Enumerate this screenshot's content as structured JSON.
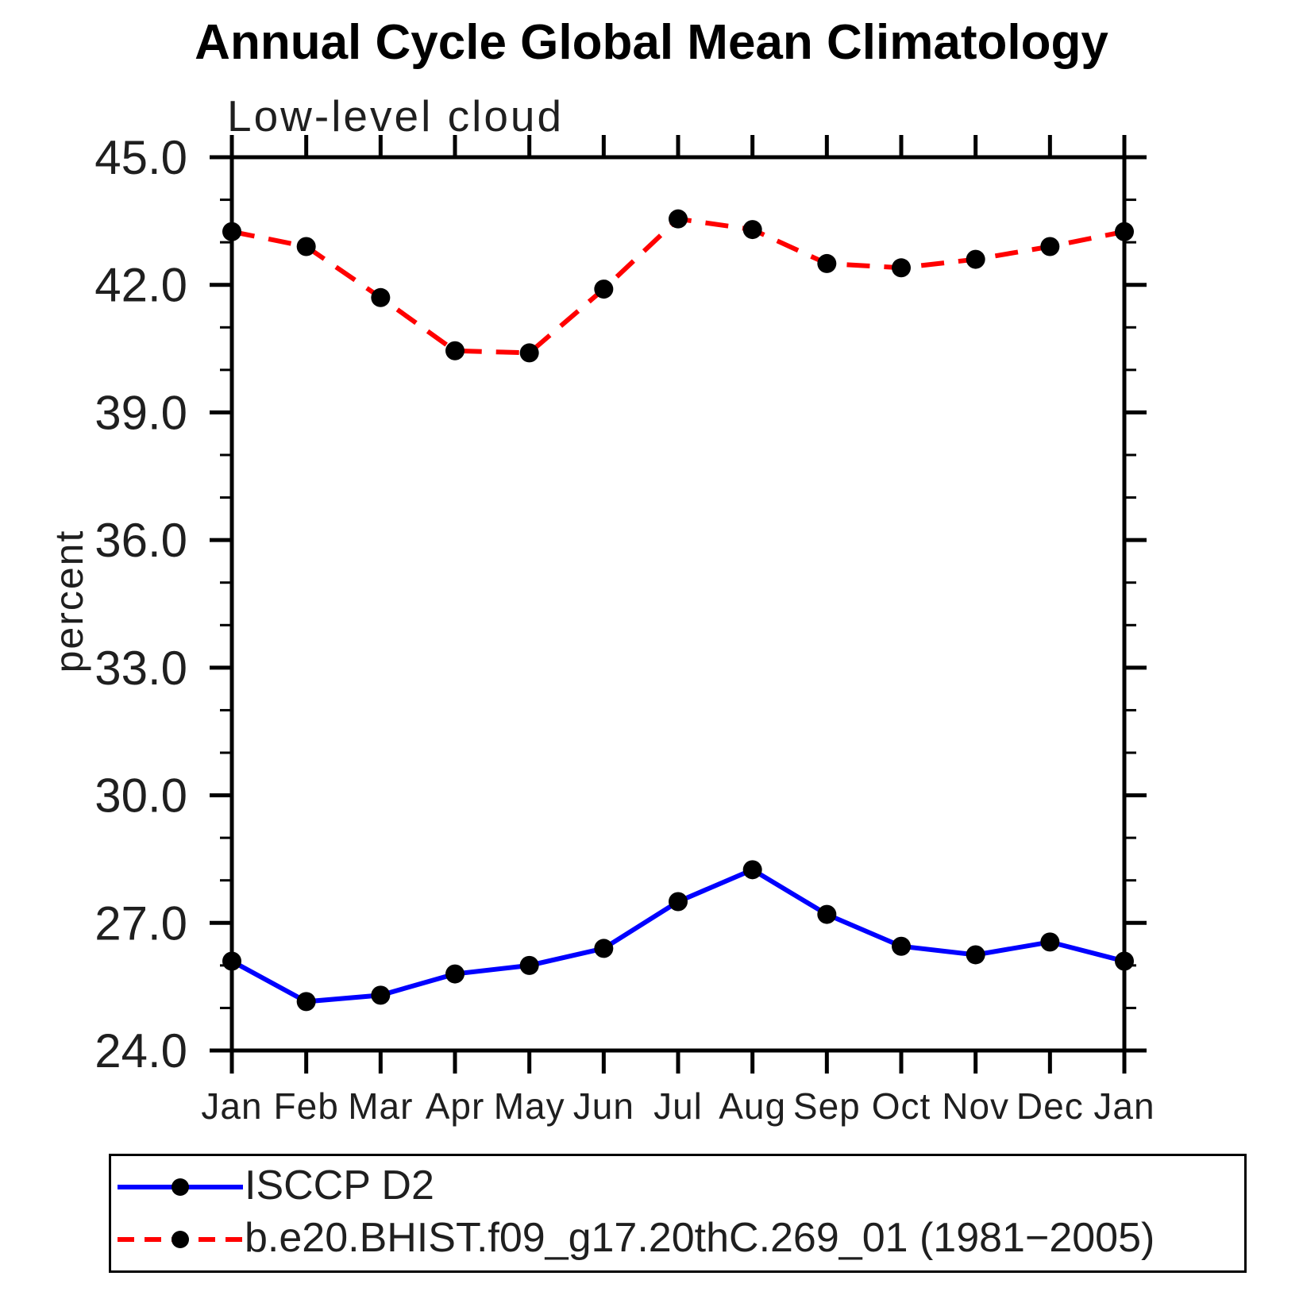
{
  "header": {
    "title": "Annual Cycle Global Mean Climatology",
    "subtitle": "Low-level cloud"
  },
  "chart_data": {
    "type": "line",
    "title": "Annual Cycle Global Mean Climatology",
    "subtitle": "Low-level cloud",
    "xlabel": "",
    "ylabel": "percent",
    "x_categories": [
      "Jan",
      "Feb",
      "Mar",
      "Apr",
      "May",
      "Jun",
      "Jul",
      "Aug",
      "Sep",
      "Oct",
      "Nov",
      "Dec",
      "Jan"
    ],
    "ylim": [
      24.0,
      45.0
    ],
    "yticks": [
      45.0,
      42.0,
      39.0,
      36.0,
      33.0,
      30.0,
      27.0,
      24.0
    ],
    "ytick_labels": [
      "45.0",
      "42.0",
      "39.0",
      "36.0",
      "33.0",
      "30.0",
      "27.0",
      "24.0"
    ],
    "ytick_minor_step": 1.0,
    "grid": false,
    "legend_position": "bottom",
    "axis_color": "#000000",
    "text_color": "#1f1f1f",
    "marker_radius": 12,
    "series": [
      {
        "name": "ISCCP D2",
        "color": "#0000ff",
        "line_style": "solid",
        "marker": "circle",
        "marker_color": "#000000",
        "values": [
          26.1,
          25.15,
          25.3,
          25.8,
          26.0,
          26.4,
          27.5,
          28.25,
          27.2,
          26.45,
          26.25,
          26.55,
          26.1
        ]
      },
      {
        "name": "b.e20.BHIST.f09_g17.20thC.269_01 (1981−2005)",
        "color": "#ff0000",
        "line_style": "dashed",
        "marker": "circle",
        "marker_color": "#000000",
        "values": [
          43.25,
          42.9,
          41.7,
          40.45,
          40.4,
          41.9,
          43.55,
          43.3,
          42.5,
          42.4,
          42.6,
          42.9,
          43.25
        ]
      }
    ]
  }
}
